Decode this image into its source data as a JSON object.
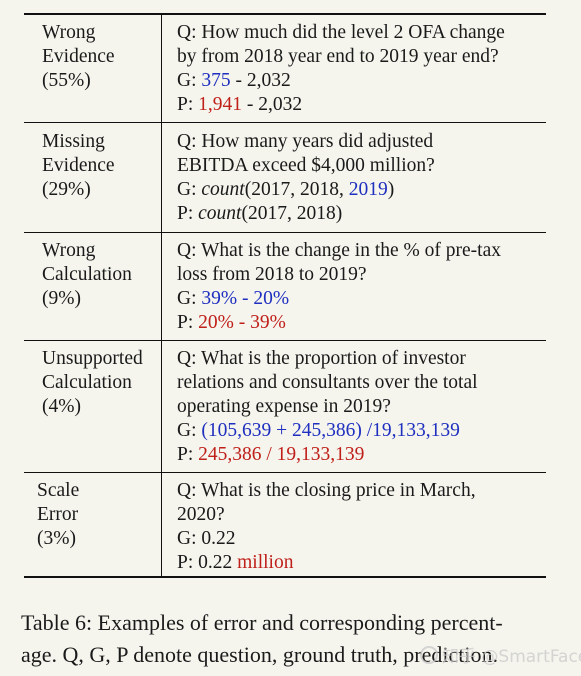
{
  "rows": [
    {
      "category": [
        "Wrong",
        "Evidence",
        "(55%)"
      ],
      "q": [
        "Q: How much did the level 2 OFA change",
        "by from 2018 year end to 2019 year end?"
      ],
      "g": {
        "prefix": "G: ",
        "hl": "375",
        "rest": " - 2,032"
      },
      "p": {
        "prefix": "P: ",
        "hl": "1,941",
        "rest": " - 2,032"
      }
    },
    {
      "category": [
        "Missing",
        "Evidence",
        "(29%)"
      ],
      "q": [
        "Q: How many years did adjusted",
        "EBITDA exceed $4,000 million?"
      ],
      "g": {
        "prefix": "G: ",
        "fn": "count",
        "args": "(2017, 2018, ",
        "hl": "2019",
        "close": ")"
      },
      "p": {
        "prefix": "P: ",
        "fn": "count",
        "args": "(2017, 2018)"
      }
    },
    {
      "category": [
        "Wrong",
        "Calculation",
        "(9%)"
      ],
      "q": [
        "Q: What is the change in the % of pre-tax",
        "loss from 2018 to 2019?"
      ],
      "g": {
        "prefix": "G: ",
        "hl": "39% - 20%"
      },
      "p": {
        "prefix": "P: ",
        "hl": "20% - 39%"
      }
    },
    {
      "category": [
        "Unsupported",
        "Calculation",
        "(4%)"
      ],
      "q": [
        "Q: What is the proportion of investor",
        "relations and consultants over the total",
        "operating expense in 2019?"
      ],
      "g": {
        "prefix": "G: ",
        "hl": "(105,639 + 245,386) /19,133,139"
      },
      "p": {
        "prefix": "P: ",
        "hl": "245,386 / 19,133,139"
      }
    },
    {
      "category": [
        "Scale",
        "Error",
        "(3%)"
      ],
      "q": [
        "Q: What is the closing price in March,",
        "2020?"
      ],
      "g": {
        "prefix": "G: ",
        "value": "0.22"
      },
      "p": {
        "prefix": "P: ",
        "value": "0.22 ",
        "hl": "million"
      }
    }
  ],
  "caption": {
    "line1": "Table 6: Examples of error and corresponding percent-",
    "line2": "age. Q, G, P denote question, ground truth, prediction."
  },
  "watermark": "知乎 @SmartFace",
  "colors": {
    "ground_truth_highlight": "#1f2fbf",
    "prediction_highlight": "#c0201a"
  }
}
